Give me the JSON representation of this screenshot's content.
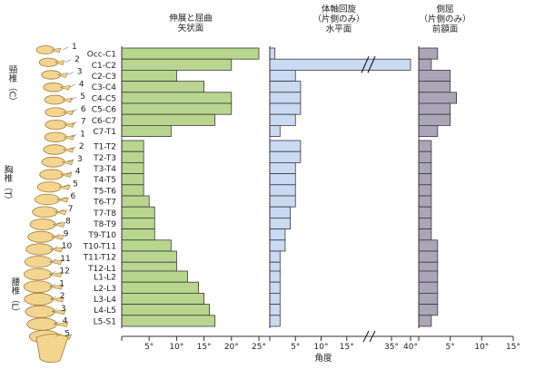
{
  "chart_data": [
    {
      "type": "bar",
      "orientation": "horizontal",
      "title_lines": [
        "伸展と屈曲",
        "矢状面"
      ],
      "xlabel": "",
      "ticks": [
        "5°",
        "10°",
        "15°",
        "20°",
        "25°"
      ],
      "xlim": [
        0,
        25
      ],
      "color": "#b9d58f",
      "categories": [
        "Occ-C1",
        "C1-C2",
        "C2-C3",
        "C3-C4",
        "C4-C5",
        "C5-C6",
        "C6-C7",
        "C7-T1",
        "T1-T2",
        "T2-T3",
        "T3-T4",
        "T4-T5",
        "T5-T6",
        "T6-T7",
        "T7-T8",
        "T8-T9",
        "T9-T10",
        "T10-T11",
        "T11-T12",
        "T12-L1",
        "L1-L2",
        "L2-L3",
        "L3-L4",
        "L4-L5",
        "L5-S1"
      ],
      "values": [
        25,
        20,
        10,
        15,
        20,
        20,
        17,
        9,
        4,
        4,
        4,
        4,
        4,
        5,
        6,
        6,
        6,
        9,
        10,
        10,
        12,
        14,
        15,
        16,
        17
      ]
    },
    {
      "type": "bar",
      "orientation": "horizontal",
      "title_lines": [
        "体軸回旋",
        "（片側のみ）",
        "水平面"
      ],
      "xlabel": "角度",
      "ticks": [
        "5°",
        "10°",
        "15°",
        "35°",
        "40°"
      ],
      "axis_break": [
        20,
        30
      ],
      "xlim": [
        0,
        40
      ],
      "color": "#c9daf2",
      "categories": [
        "Occ-C1",
        "C1-C2",
        "C2-C3",
        "C3-C4",
        "C4-C5",
        "C5-C6",
        "C6-C7",
        "C7-T1",
        "T1-T2",
        "T2-T3",
        "T3-T4",
        "T4-T5",
        "T5-T6",
        "T6-T7",
        "T7-T8",
        "T8-T9",
        "T9-T10",
        "T10-T11",
        "T11-T12",
        "T12-L1",
        "L1-L2",
        "L2-L3",
        "L3-L4",
        "L4-L5",
        "L5-S1"
      ],
      "values": [
        1,
        40,
        5,
        6,
        6,
        6,
        5,
        2,
        6,
        6,
        5,
        5,
        5,
        5,
        4,
        4,
        3,
        3,
        2,
        2,
        2,
        2,
        2,
        2,
        2
      ]
    },
    {
      "type": "bar",
      "orientation": "horizontal",
      "title_lines": [
        "側屈",
        "（片側のみ）",
        "前額面"
      ],
      "xlabel": "",
      "ticks": [
        "5°",
        "10°",
        "15°"
      ],
      "xlim": [
        0,
        15
      ],
      "color": "#aaa6b8",
      "categories": [
        "Occ-C1",
        "C1-C2",
        "C2-C3",
        "C3-C4",
        "C4-C5",
        "C5-C6",
        "C6-C7",
        "C7-T1",
        "T1-T2",
        "T2-T3",
        "T3-T4",
        "T4-T5",
        "T5-T6",
        "T6-T7",
        "T7-T8",
        "T8-T9",
        "T9-T10",
        "T10-T11",
        "T11-T12",
        "T12-L1",
        "L1-L2",
        "L2-L3",
        "L3-L4",
        "L4-L5",
        "L5-S1"
      ],
      "values": [
        3,
        2,
        5,
        5,
        6,
        5,
        5,
        3,
        2,
        2,
        2,
        2,
        2,
        2,
        2,
        2,
        2,
        3,
        3,
        3,
        3,
        3,
        3,
        3,
        2
      ]
    }
  ],
  "spine": {
    "cervical_label": "頸椎（C）",
    "thoracic_label": "胸椎（T）",
    "lumbar_label": "腰椎（L）",
    "cervical_numbers": [
      "1",
      "2",
      "3",
      "4",
      "5",
      "6",
      "7"
    ],
    "thoracic_numbers": [
      "1",
      "2",
      "3",
      "4",
      "5",
      "6",
      "7",
      "8",
      "9",
      "10",
      "11",
      "12"
    ],
    "lumbar_numbers": [
      "1",
      "2",
      "3",
      "4",
      "5"
    ]
  }
}
